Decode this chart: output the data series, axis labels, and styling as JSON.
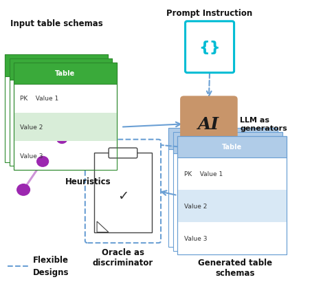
{
  "bg_color": "#ffffff",
  "input_table_label": "Input table schemas",
  "prompt_label": "Prompt Instruction",
  "llm_label": "LLM as\ngenerators",
  "generated_label": "Generated table\nschemas",
  "oracle_label": "Oracle as\ndiscriminator",
  "heuristics_label": "Heuristics",
  "flexible_label": "Flexible\nDesigns",
  "green_header": "#3aaa3a",
  "green_light": "#d8edd8",
  "green_border": "#2d8a2d",
  "blue_header": "#b0cce8",
  "blue_light": "#d8e8f5",
  "blue_border": "#6a9fd4",
  "brown_box": "#c8956a",
  "cyan_color": "#00bcd4",
  "purple_color": "#9c27b0",
  "purple_light": "#ce93d8",
  "arrow_blue": "#6a9fd4",
  "dashed_blue": "#6a9fd4"
}
